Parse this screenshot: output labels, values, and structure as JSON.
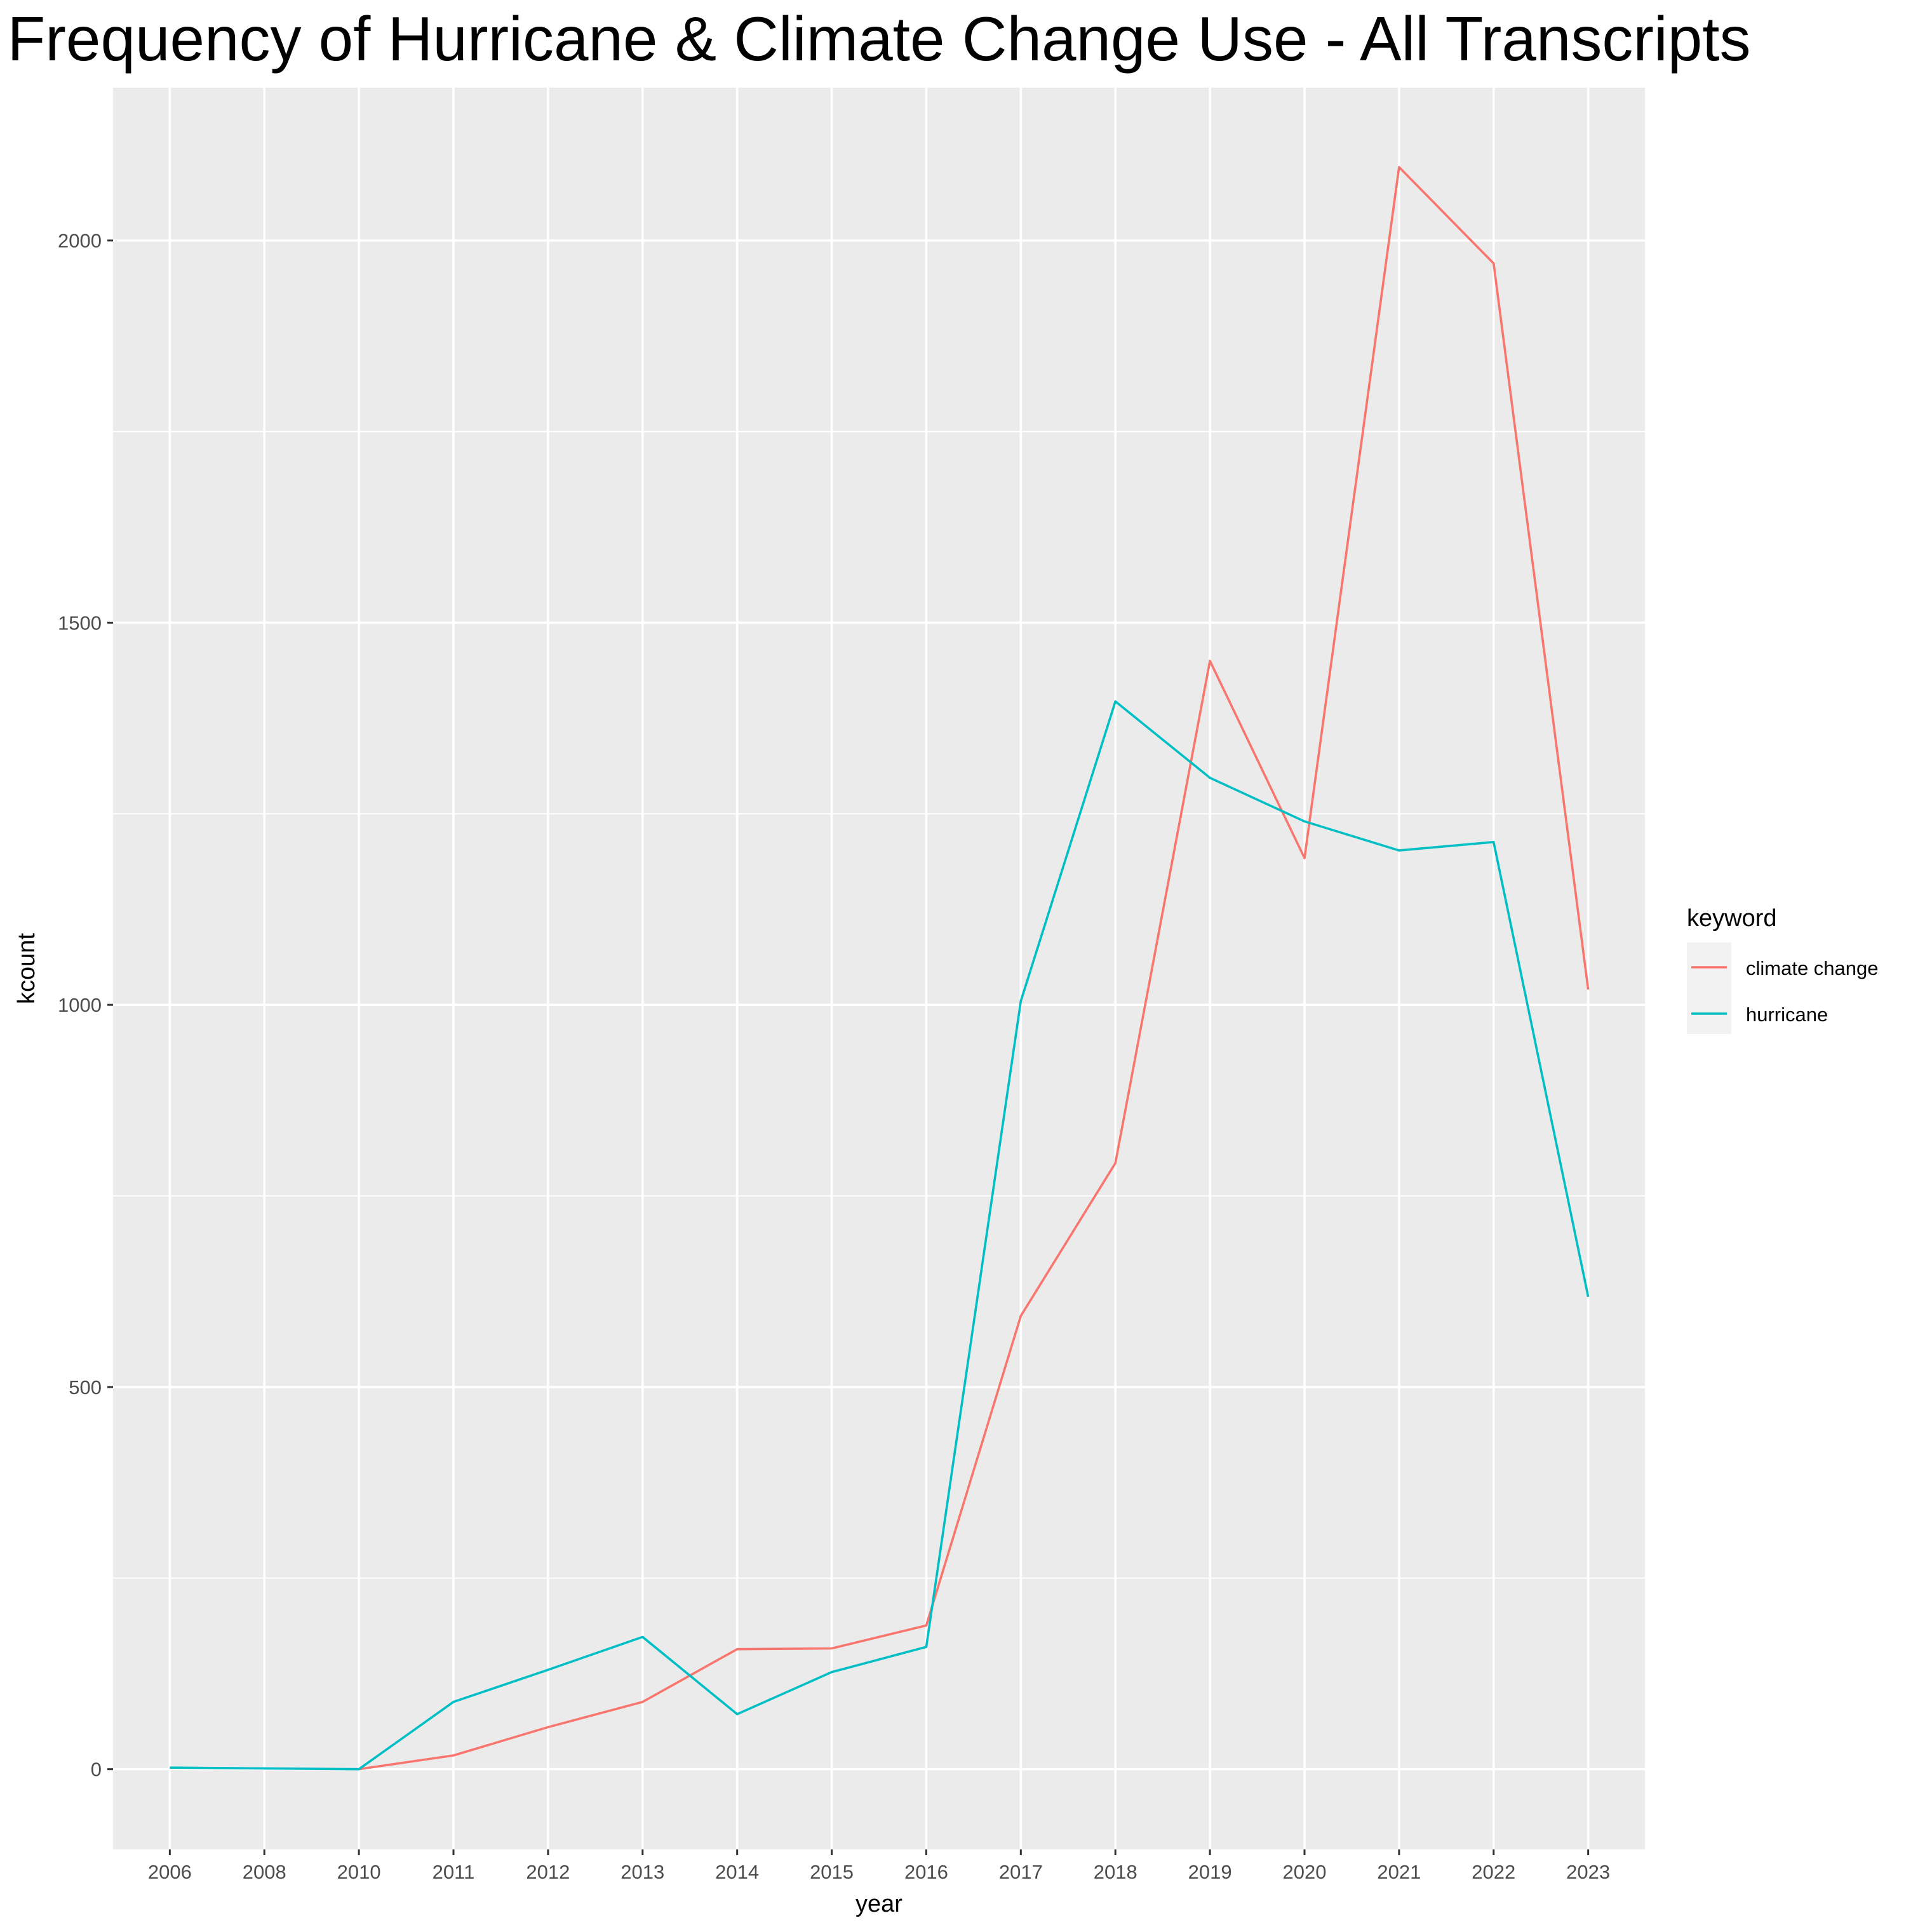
{
  "chart_data": {
    "type": "line",
    "title": "Frequency of Hurricane & Climate Change Use - All Transcripts",
    "xlabel": "year",
    "ylabel": "kcount",
    "categories": [
      "2006",
      "2008",
      "2010",
      "2011",
      "2012",
      "2013",
      "2014",
      "2015",
      "2016",
      "2017",
      "2018",
      "2019",
      "2020",
      "2021",
      "2022",
      "2023"
    ],
    "ylim": [
      -105,
      2200
    ],
    "y_ticks": [
      0,
      500,
      1000,
      1500,
      2000
    ],
    "grid": true,
    "legend": {
      "title": "keyword",
      "position": "right"
    },
    "series": [
      {
        "name": "climate change",
        "color": "#F8766D",
        "values": [
          null,
          null,
          0,
          18,
          55,
          88,
          157,
          158,
          188,
          593,
          793,
          1450,
          1192,
          2096,
          1970,
          1020
        ]
      },
      {
        "name": "hurricane",
        "color": "#00BFC4",
        "values": [
          2,
          1,
          0,
          88,
          130,
          173,
          72,
          127,
          160,
          1005,
          1397,
          1297,
          1240,
          1202,
          1213,
          618
        ]
      }
    ],
    "panel_background": "#EBEBEB",
    "grid_color": "#FFFFFF"
  }
}
